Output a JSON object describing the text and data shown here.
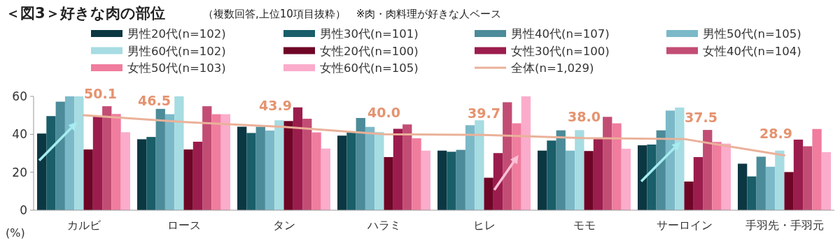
{
  "chart_data": {
    "type": "bar",
    "title": "＜図3＞好きな肉の部位",
    "subtitle": "（複数回答,上位10項目抜粋）　※肉・肉料理が好きな人ベース",
    "ylabel": "(%)",
    "categories": [
      "カルビ",
      "ロース",
      "タン",
      "ハラミ",
      "ヒレ",
      "モモ",
      "サーロイン",
      "手羽先・手羽元"
    ],
    "ylim": [
      0,
      60
    ],
    "yticks": [
      0,
      20,
      40,
      60
    ],
    "grid": false,
    "legend": "top",
    "series": [
      {
        "name": "男性20代(n=102)",
        "color": "#0b3742",
        "values": [
          40.4,
          37.4,
          44.0,
          39.3,
          31.4,
          31.4,
          34.2,
          24.5
        ]
      },
      {
        "name": "男性30代(n=101)",
        "color": "#195e69",
        "values": [
          49.6,
          38.6,
          40.7,
          41.0,
          30.8,
          36.7,
          34.6,
          17.8
        ]
      },
      {
        "name": "男性40代(n=107)",
        "color": "#4c8b99",
        "values": [
          57.2,
          53.4,
          44.0,
          48.6,
          31.8,
          42.1,
          42.1,
          28.2
        ]
      },
      {
        "name": "男性50代(n=105)",
        "color": "#7bb9c9",
        "values": [
          60,
          50.6,
          42.0,
          43.9,
          44.8,
          31.4,
          52.5,
          22.9
        ]
      },
      {
        "name": "男性60代(n=102)",
        "color": "#a6dce2",
        "values": [
          60,
          60,
          47.4,
          41.2,
          47.4,
          42.2,
          54.1,
          31.4
        ]
      },
      {
        "name": "女性20代(n=100)",
        "color": "#6e0526",
        "values": [
          32.0,
          32.0,
          47.0,
          28.0,
          17.1,
          31.2,
          15.1,
          20.1
        ]
      },
      {
        "name": "女性30代(n=100)",
        "color": "#9b1d4d",
        "values": [
          49.6,
          36.1,
          54.2,
          42.9,
          30.1,
          37.5,
          28.0,
          37.2
        ]
      },
      {
        "name": "女性40代(n=104)",
        "color": "#c24d74",
        "values": [
          54.8,
          54.8,
          48.2,
          45.2,
          56.9,
          49.2,
          42.3,
          33.7
        ]
      },
      {
        "name": "女性50代(n=103)",
        "color": "#f07c9e",
        "values": [
          50.7,
          50.6,
          41.0,
          37.9,
          45.8,
          45.8,
          36.0,
          42.8
        ]
      },
      {
        "name": "女性60代(n=105)",
        "color": "#fbaccb",
        "values": [
          41.1,
          50.6,
          32.5,
          31.4,
          60,
          32.4,
          35.1,
          30.6
        ]
      },
      {
        "name": "全体(n=1,029)",
        "type": "line",
        "color": "#eab199",
        "values": [
          50.1,
          46.5,
          43.9,
          40.0,
          39.7,
          38.0,
          37.5,
          28.9
        ],
        "value_labels": [
          "50.1",
          "46.5",
          "43.9",
          "40.0",
          "39.7",
          "38.0",
          "37.5",
          "28.9"
        ]
      }
    ]
  }
}
